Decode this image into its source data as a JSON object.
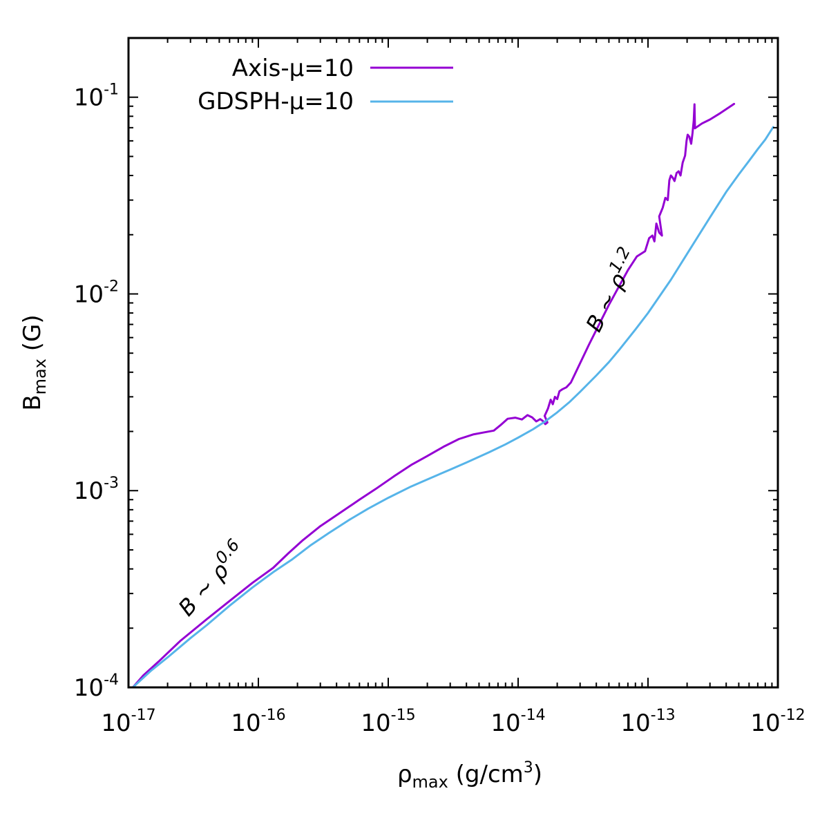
{
  "chart_data": {
    "type": "line",
    "title": "",
    "x_axis": {
      "scale": "log",
      "range": [
        1e-17,
        1e-12
      ],
      "label_main": "ρ",
      "label_sub": "max",
      "label_unit_pre": " (g/cm",
      "label_unit_exp": "3",
      "label_unit_post": ")",
      "tick_values": [
        1e-17,
        1e-16,
        1e-15,
        1e-14,
        1e-13,
        1e-12
      ],
      "tick_labels": [
        {
          "base": "10",
          "exp": "-17"
        },
        {
          "base": "10",
          "exp": "-16"
        },
        {
          "base": "10",
          "exp": "-15"
        },
        {
          "base": "10",
          "exp": "-14"
        },
        {
          "base": "10",
          "exp": "-13"
        },
        {
          "base": "10",
          "exp": "-12"
        }
      ]
    },
    "y_axis": {
      "scale": "log",
      "range": [
        0.0001,
        0.2
      ],
      "label_main": "B",
      "label_sub": "max",
      "label_unit": " (G)",
      "tick_values": [
        0.0001,
        0.001,
        0.01,
        0.1
      ],
      "tick_labels": [
        {
          "base": "10",
          "exp": "-4"
        },
        {
          "base": "10",
          "exp": "-3"
        },
        {
          "base": "10",
          "exp": "-2"
        },
        {
          "base": "10",
          "exp": "-1"
        }
      ]
    },
    "grid": false,
    "legend_position": "top-left",
    "series": [
      {
        "name": "Axis-μ=10",
        "color": "#9400d3",
        "points": [
          [
            1.08e-17,
            0.0001
          ],
          [
            1.3e-17,
            0.000115
          ],
          [
            1.7e-17,
            0.000135
          ],
          [
            2.5e-17,
            0.000172
          ],
          [
            4e-17,
            0.000222
          ],
          [
            6e-17,
            0.000275
          ],
          [
            9e-17,
            0.00034
          ],
          [
            1.3e-16,
            0.000405
          ],
          [
            1.7e-16,
            0.00048
          ],
          [
            2.2e-16,
            0.00056
          ],
          [
            3e-16,
            0.00066
          ],
          [
            4e-16,
            0.00075
          ],
          [
            6e-16,
            0.0009
          ],
          [
            8e-16,
            0.00102
          ],
          [
            1.1e-15,
            0.00118
          ],
          [
            1.5e-15,
            0.00135
          ],
          [
            2e-15,
            0.0015
          ],
          [
            2.7e-15,
            0.00168
          ],
          [
            3.5e-15,
            0.00183
          ],
          [
            4.5e-15,
            0.00193
          ],
          [
            5.5e-15,
            0.00198
          ],
          [
            6.5e-15,
            0.00202
          ],
          [
            7.3e-15,
            0.00215
          ],
          [
            8.3e-15,
            0.00232
          ],
          [
            9.5e-15,
            0.00235
          ],
          [
            1.07e-14,
            0.0023
          ],
          [
            1.18e-14,
            0.00242
          ],
          [
            1.28e-14,
            0.00236
          ],
          [
            1.38e-14,
            0.00225
          ],
          [
            1.48e-14,
            0.00231
          ],
          [
            1.55e-14,
            0.00226
          ],
          [
            1.62e-14,
            0.00218
          ],
          [
            1.68e-14,
            0.00222
          ],
          [
            1.6e-14,
            0.0024
          ],
          [
            1.7e-14,
            0.00262
          ],
          [
            1.78e-14,
            0.0029
          ],
          [
            1.85e-14,
            0.00275
          ],
          [
            1.92e-14,
            0.003
          ],
          [
            2e-14,
            0.00292
          ],
          [
            2.08e-14,
            0.0032
          ],
          [
            2.2e-14,
            0.00328
          ],
          [
            2.35e-14,
            0.00335
          ],
          [
            2.55e-14,
            0.00355
          ],
          [
            3.5e-14,
            0.0055
          ],
          [
            5e-14,
            0.0088
          ],
          [
            7e-14,
            0.0132
          ],
          [
            8.2e-14,
            0.0155
          ],
          [
            9.5e-14,
            0.0165
          ],
          [
            1.02e-13,
            0.0192
          ],
          [
            1.08e-13,
            0.0198
          ],
          [
            1.12e-13,
            0.0185
          ],
          [
            1.16e-13,
            0.0228
          ],
          [
            1.22e-13,
            0.0205
          ],
          [
            1.28e-13,
            0.0198
          ],
          [
            1.22e-13,
            0.0248
          ],
          [
            1.3e-13,
            0.0275
          ],
          [
            1.36e-13,
            0.0308
          ],
          [
            1.42e-13,
            0.03
          ],
          [
            1.46e-13,
            0.0378
          ],
          [
            1.5e-13,
            0.04
          ],
          [
            1.55e-13,
            0.039
          ],
          [
            1.6e-13,
            0.0375
          ],
          [
            1.66e-13,
            0.0412
          ],
          [
            1.72e-13,
            0.042
          ],
          [
            1.78e-13,
            0.04
          ],
          [
            1.85e-13,
            0.0465
          ],
          [
            1.93e-13,
            0.0505
          ],
          [
            1.98e-13,
            0.06
          ],
          [
            2.02e-13,
            0.0645
          ],
          [
            2.08e-13,
            0.063
          ],
          [
            2.15e-13,
            0.058
          ],
          [
            2.2e-13,
            0.0655
          ],
          [
            2.25e-13,
            0.076
          ],
          [
            2.28e-13,
            0.092
          ],
          [
            2.3e-13,
            0.0695
          ],
          [
            2.6e-13,
            0.0735
          ],
          [
            3e-13,
            0.077
          ],
          [
            3.6e-13,
            0.083
          ],
          [
            4.6e-13,
            0.0925
          ]
        ]
      },
      {
        "name": "GDSPH-μ=10",
        "color": "#56b4e9",
        "points": [
          [
            1.08e-17,
            0.0001
          ],
          [
            1.5e-17,
            0.000122
          ],
          [
            2e-17,
            0.000142
          ],
          [
            3e-17,
            0.000178
          ],
          [
            4e-17,
            0.000207
          ],
          [
            6e-17,
            0.00026
          ],
          [
            9e-17,
            0.000322
          ],
          [
            1.3e-16,
            0.000385
          ],
          [
            1.8e-16,
            0.000445
          ],
          [
            2.5e-16,
            0.000525
          ],
          [
            3.5e-16,
            0.00061
          ],
          [
            5e-16,
            0.00071
          ],
          [
            7e-16,
            0.00081
          ],
          [
            1e-15,
            0.00092
          ],
          [
            1.5e-15,
            0.00105
          ],
          [
            2e-15,
            0.00114
          ],
          [
            3e-15,
            0.00128
          ],
          [
            4e-15,
            0.00139
          ],
          [
            6e-15,
            0.00157
          ],
          [
            8e-15,
            0.00172
          ],
          [
            1e-14,
            0.00186
          ],
          [
            1.3e-14,
            0.00205
          ],
          [
            1.6e-14,
            0.00224
          ],
          [
            2e-14,
            0.0025
          ],
          [
            2.5e-14,
            0.00283
          ],
          [
            3e-14,
            0.00318
          ],
          [
            4e-14,
            0.00385
          ],
          [
            5e-14,
            0.0045
          ],
          [
            6e-14,
            0.0052
          ],
          [
            8e-14,
            0.0066
          ],
          [
            1e-13,
            0.008
          ],
          [
            1.5e-13,
            0.0118
          ],
          [
            2e-13,
            0.016
          ],
          [
            3e-13,
            0.0245
          ],
          [
            4e-13,
            0.033
          ],
          [
            5e-13,
            0.0405
          ],
          [
            6e-13,
            0.0475
          ],
          [
            7e-13,
            0.0545
          ],
          [
            8e-13,
            0.061
          ],
          [
            9.2e-13,
            0.0705
          ]
        ]
      }
    ],
    "annotations": [
      {
        "base": "B ~ ρ",
        "exp": "0.6",
        "x": 2.9e-17,
        "y": 0.000227,
        "angle_deg": -48
      },
      {
        "base": "B ~ ρ",
        "exp": "1.2",
        "x": 4.2e-14,
        "y": 0.0063,
        "angle_deg": -63
      }
    ]
  }
}
